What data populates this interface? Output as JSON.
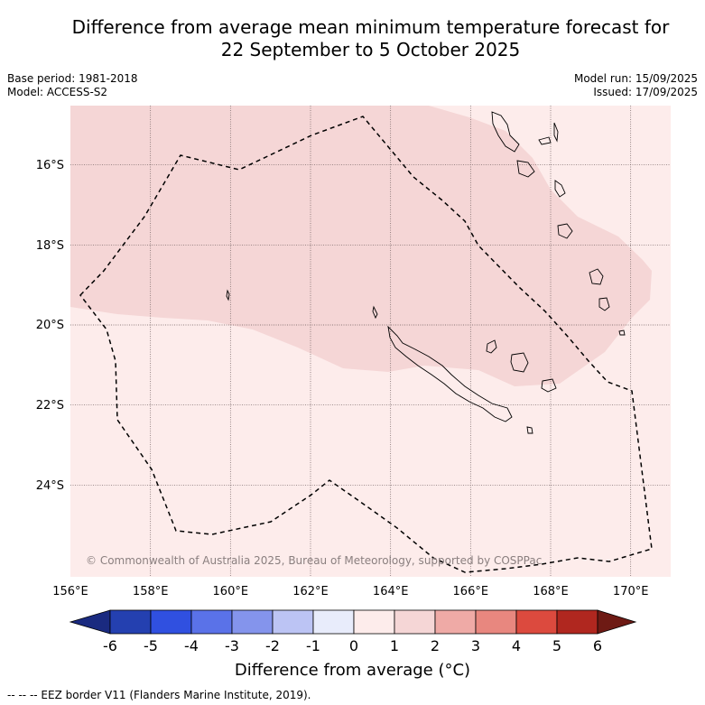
{
  "title_line1": "Difference from average mean minimum temperature forecast for",
  "title_line2": "22 September to 5 October 2025",
  "base_period": "Base period: 1981-2018",
  "model": "Model: ACCESS-S2",
  "model_run": "Model run: 15/09/2025",
  "issued": "Issued: 17/09/2025",
  "credit": "© Commonwealth of Australia 2025, Bureau of Meteorology, supported by COSPPac",
  "footer": "-- -- -- EEZ border V11 (Flanders Marine Institute, 2019).",
  "colorbar_label": "Difference from average (°C)",
  "map": {
    "lon_range": [
      156,
      171
    ],
    "lat_range": [
      -26.0,
      -14.5
    ],
    "lon_ticks": [
      "156°E",
      "158°E",
      "160°E",
      "162°E",
      "164°E",
      "166°E",
      "168°E",
      "170°E"
    ],
    "lat_ticks": [
      "16°S",
      "18°S",
      "20°S",
      "22°S",
      "24°S"
    ],
    "background_anomaly_color": "#fdeceb",
    "warm_zone_color": "#f5d6d6"
  },
  "colorbar": {
    "ticks": [
      "-6",
      "-5",
      "-4",
      "-3",
      "-2",
      "-1",
      "0",
      "1",
      "2",
      "3",
      "4",
      "5",
      "6"
    ],
    "colors": [
      "#1a2a80",
      "#2440b0",
      "#3050e0",
      "#5a72e8",
      "#8494ec",
      "#bcc4f4",
      "#e8ecfb",
      "#fdeceb",
      "#f5d6d6",
      "#efaaa6",
      "#e8877f",
      "#dc4a3e",
      "#b0271f",
      "#6e1a14"
    ]
  }
}
